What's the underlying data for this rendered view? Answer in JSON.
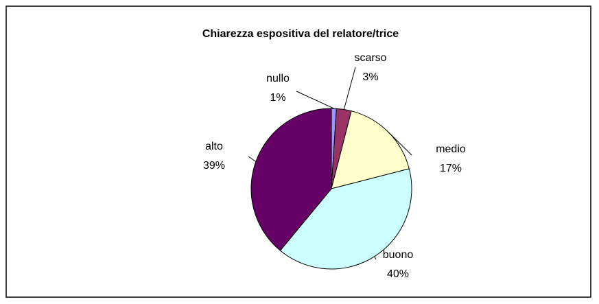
{
  "chart_data": {
    "type": "pie",
    "title": "Chiarezza espositiva del relatore/trice",
    "categories": [
      "nullo",
      "scarso",
      "medio",
      "buono",
      "alto"
    ],
    "values": [
      1,
      3,
      17,
      40,
      39
    ],
    "value_labels": [
      "1%",
      "3%",
      "17%",
      "40%",
      "39%"
    ],
    "colors": [
      "#9999ff",
      "#993366",
      "#ffffcc",
      "#ccffff",
      "#660066"
    ]
  }
}
